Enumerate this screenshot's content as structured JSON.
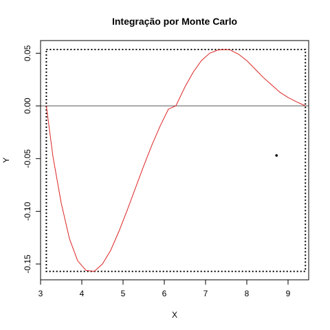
{
  "chart_data": {
    "type": "line",
    "title": "Integração por Monte Carlo",
    "xlabel": "X",
    "ylabel": "Y",
    "xlim": [
      3.0,
      9.5
    ],
    "ylim": [
      -0.165,
      0.062
    ],
    "x_ticks": [
      3,
      4,
      5,
      6,
      7,
      8,
      9
    ],
    "y_ticks": [
      0.05,
      0.0,
      -0.05,
      -0.1,
      -0.15
    ],
    "y_tick_labels": [
      "0.05",
      "0.00",
      "-0.05",
      "-0.10",
      "-0.15"
    ],
    "series": [
      {
        "color": "#dd2222",
        "x": [
          3.14,
          3.3,
          3.5,
          3.7,
          3.9,
          4.1,
          4.3,
          4.5,
          4.7,
          4.9,
          5.1,
          5.3,
          5.5,
          5.7,
          5.9,
          6.1,
          6.28,
          6.5,
          6.7,
          6.9,
          7.1,
          7.3,
          7.5,
          7.6,
          7.8,
          8.0,
          8.2,
          8.4,
          8.6,
          8.8,
          9.0,
          9.2,
          9.42
        ],
        "y": [
          0.0,
          -0.048,
          -0.092,
          -0.126,
          -0.147,
          -0.156,
          -0.157,
          -0.15,
          -0.137,
          -0.119,
          -0.099,
          -0.078,
          -0.057,
          -0.037,
          -0.019,
          -0.003,
          0.0,
          0.018,
          0.032,
          0.043,
          0.05,
          0.053,
          0.0535,
          0.053,
          0.049,
          0.043,
          0.035,
          0.027,
          0.02,
          0.013,
          0.008,
          0.004,
          0.0
        ]
      }
    ],
    "reference_line": {
      "y": 0.0,
      "color": "#555555"
    },
    "bounding_box": {
      "x": [
        3.14,
        9.42
      ],
      "y": [
        -0.157,
        0.0535
      ],
      "style": "dotted"
    },
    "points": [
      {
        "x": 8.72,
        "y": -0.047
      }
    ]
  }
}
